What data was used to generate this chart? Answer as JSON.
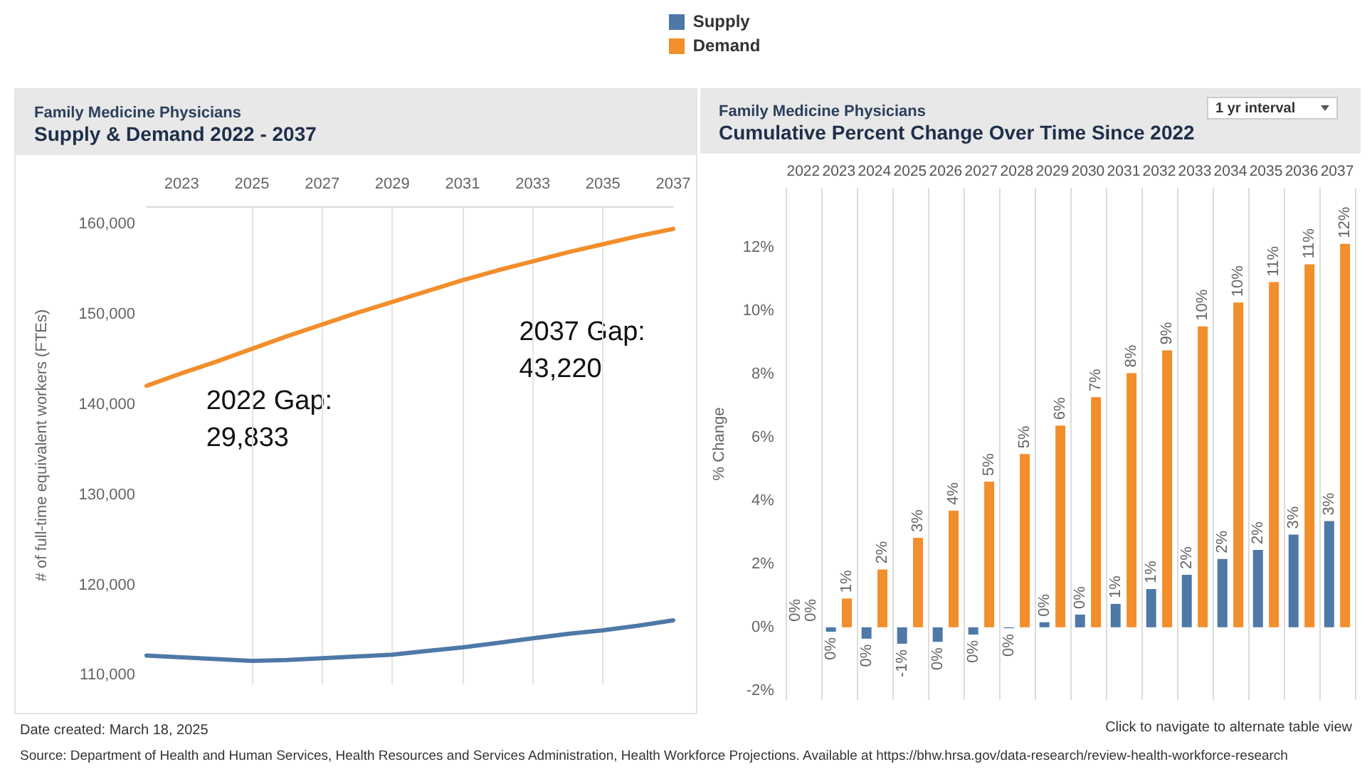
{
  "chart_data": [
    {
      "type": "line",
      "subtitle": "Family Medicine Physicians",
      "title": "Supply & Demand 2022 - 2037",
      "ylabel": "# of full-time equivalent workers (FTEs)",
      "x": [
        2022,
        2023,
        2024,
        2025,
        2026,
        2027,
        2028,
        2029,
        2030,
        2031,
        2032,
        2033,
        2034,
        2035,
        2036,
        2037
      ],
      "series": [
        {
          "name": "Supply",
          "color": "#4e79a7",
          "values": [
            112200,
            112000,
            111800,
            111600,
            111700,
            111900,
            112100,
            112300,
            112700,
            113100,
            113600,
            114100,
            114600,
            115000,
            115500,
            116100
          ]
        },
        {
          "name": "Demand",
          "color": "#f28e2b",
          "values": [
            142100,
            143500,
            144800,
            146200,
            147600,
            148900,
            150200,
            151400,
            152600,
            153800,
            154900,
            155900,
            156900,
            157800,
            158700,
            159500
          ]
        }
      ],
      "xlim": [
        2022,
        2037
      ],
      "xticks": [
        2023,
        2025,
        2027,
        2029,
        2031,
        2033,
        2035,
        2037
      ],
      "ylim": [
        109000,
        162000
      ],
      "yticks": [
        {
          "value": 110000,
          "label": "110,000"
        },
        {
          "value": 120000,
          "label": "120,000"
        },
        {
          "value": 130000,
          "label": "130,000"
        },
        {
          "value": 140000,
          "label": "140,000"
        },
        {
          "value": 150000,
          "label": "150,000"
        },
        {
          "value": 160000,
          "label": "160,000"
        }
      ],
      "grid": "x",
      "legend": "top",
      "marker": "none",
      "line_style": "solid",
      "annotations": [
        "2022 Gap:\n29,833",
        "2037 Gap:\n43,220",
        "Date created: March 18, 2025"
      ]
    },
    {
      "type": "bar",
      "subtitle": "Family Medicine Physicians",
      "title": "Cumulative Percent Change Over Time Since 2022",
      "ylabel": "% Change",
      "categories": [
        "2022",
        "2023",
        "2024",
        "2025",
        "2026",
        "2027",
        "2028",
        "2029",
        "2030",
        "2031",
        "2032",
        "2033",
        "2034",
        "2035",
        "2036",
        "2037"
      ],
      "series": [
        {
          "color": "#4e79a7",
          "values": [
            0,
            -0.14,
            -0.36,
            -0.52,
            -0.46,
            -0.23,
            -0.03,
            0.16,
            0.4,
            0.74,
            1.21,
            1.66,
            2.16,
            2.45,
            2.93,
            3.36
          ],
          "value_labels": [
            "0%",
            "0%",
            "0%",
            "-1%",
            "0%",
            "0%",
            "0%",
            "0%",
            "0%",
            "1%",
            "1%",
            "2%",
            "2%",
            "2%",
            "3%",
            "3%"
          ]
        },
        {
          "color": "#f28e2b",
          "values": [
            0,
            0.91,
            1.83,
            2.83,
            3.69,
            4.61,
            5.48,
            6.38,
            7.28,
            8.04,
            8.76,
            9.52,
            10.27,
            10.92,
            11.48,
            12.13
          ],
          "value_labels": [
            "0%",
            "1%",
            "2%",
            "3%",
            "4%",
            "5%",
            "5%",
            "6%",
            "7%",
            "8%",
            "9%",
            "10%",
            "10%",
            "11%",
            "11%",
            "12%"
          ]
        }
      ],
      "ylim": [
        -2.3,
        13.9
      ],
      "yticks": [
        {
          "value": -2,
          "label": "-2%"
        },
        {
          "value": 0,
          "label": "0%"
        },
        {
          "value": 2,
          "label": "2%"
        },
        {
          "value": 4,
          "label": "4%"
        },
        {
          "value": 6,
          "label": "6%"
        },
        {
          "value": 8,
          "label": "8%"
        },
        {
          "value": 10,
          "label": "10%"
        },
        {
          "value": 12,
          "label": "12%"
        }
      ],
      "grid": "x",
      "annotations": [
        "1 yr interval",
        "Click to navigate to alternate table view",
        "Source: Department of Health and Human Services, Health Resources and Services Administration, Health Workforce Projections. Available at https://bhw.hrsa.gov/data-research/review-health-workforce-research"
      ]
    }
  ]
}
